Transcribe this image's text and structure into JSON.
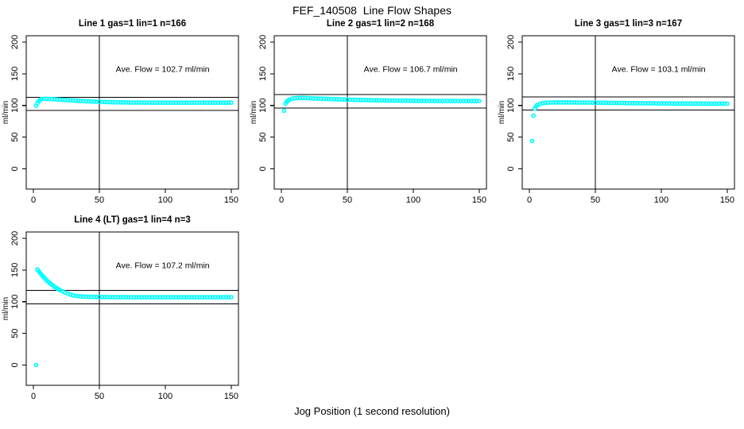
{
  "page": {
    "main_title": "FEF_140508  Line Flow Shapes",
    "x_axis_label": "Jog Position (1 second resolution)",
    "colors": {
      "point": "#00FFFF",
      "line": "#000000",
      "background": "#FFFFFF",
      "text": "#000000"
    }
  },
  "chart_data": [
    {
      "type": "scatter",
      "title": "Line 1 gas=1 lin=1 n=166",
      "ylabel": "ml/min",
      "annotation": "Ave. Flow =  102.7  ml/min",
      "annotation_pos": [
        98,
        153
      ],
      "ave_flow_ml_min": 102.7,
      "xlim": [
        -5.5,
        155.5
      ],
      "ylim": [
        -32,
        210
      ],
      "xticks": [
        0,
        50,
        100,
        150
      ],
      "yticks": [
        0,
        50,
        100,
        150,
        200
      ],
      "hlines": [
        112.97,
        92.43
      ],
      "vlines": [
        50
      ],
      "marker": "open-circle",
      "marker_color": "#00FFFF",
      "points": [
        [
          2,
          99.5
        ],
        [
          3,
          103.8
        ],
        [
          4,
          106.8
        ],
        [
          5,
          108.8
        ],
        [
          6,
          109.9
        ],
        [
          8,
          110.4
        ],
        [
          10,
          110.5
        ],
        [
          12,
          110.3
        ],
        [
          14,
          110.1
        ],
        [
          16,
          109.8
        ],
        [
          18,
          109.5
        ],
        [
          20,
          109.2
        ],
        [
          22,
          108.9
        ],
        [
          24,
          108.6
        ],
        [
          26,
          108.3
        ],
        [
          28,
          108.1
        ],
        [
          30,
          107.8
        ],
        [
          32,
          107.6
        ],
        [
          34,
          107.3
        ],
        [
          36,
          107.1
        ],
        [
          38,
          106.9
        ],
        [
          40,
          106.7
        ],
        [
          42,
          106.5
        ],
        [
          44,
          106.3
        ],
        [
          46,
          106.1
        ],
        [
          48,
          105.9
        ],
        [
          50,
          105.8
        ],
        [
          52,
          105.6
        ],
        [
          54,
          105.5
        ],
        [
          56,
          105.4
        ],
        [
          58,
          105.2
        ],
        [
          60,
          105.1
        ],
        [
          62,
          105.0
        ],
        [
          64,
          104.9
        ],
        [
          66,
          104.9
        ],
        [
          68,
          104.8
        ],
        [
          70,
          104.7
        ],
        [
          72,
          104.7
        ],
        [
          74,
          104.6
        ],
        [
          76,
          104.6
        ],
        [
          78,
          104.5
        ],
        [
          80,
          104.5
        ],
        [
          82,
          104.4
        ],
        [
          84,
          104.4
        ],
        [
          86,
          104.5
        ],
        [
          88,
          104.4
        ],
        [
          90,
          104.3
        ],
        [
          92,
          104.4
        ],
        [
          94,
          104.3
        ],
        [
          96,
          104.4
        ],
        [
          98,
          104.3
        ],
        [
          100,
          104.4
        ],
        [
          102,
          104.3
        ],
        [
          104,
          104.4
        ],
        [
          106,
          104.3
        ],
        [
          108,
          104.4
        ],
        [
          110,
          104.3
        ],
        [
          112,
          104.4
        ],
        [
          114,
          104.3
        ],
        [
          116,
          104.4
        ],
        [
          118,
          104.3
        ],
        [
          120,
          104.4
        ],
        [
          122,
          104.3
        ],
        [
          124,
          104.4
        ],
        [
          126,
          104.3
        ],
        [
          128,
          104.5
        ],
        [
          130,
          104.3
        ],
        [
          132,
          104.4
        ],
        [
          134,
          104.3
        ],
        [
          136,
          104.4
        ],
        [
          138,
          104.3
        ],
        [
          140,
          104.4
        ],
        [
          142,
          104.3
        ],
        [
          144,
          104.4
        ],
        [
          146,
          104.3
        ],
        [
          148,
          104.4
        ],
        [
          150,
          104.4
        ]
      ]
    },
    {
      "type": "scatter",
      "title": "Line 2 gas=1 lin=2 n=168",
      "ylabel": "ml/min",
      "annotation": "Ave. Flow =  106.7  ml/min",
      "annotation_pos": [
        98,
        153
      ],
      "ave_flow_ml_min": 106.7,
      "xlim": [
        -5.5,
        155.5
      ],
      "ylim": [
        -32,
        210
      ],
      "xticks": [
        0,
        50,
        100,
        150
      ],
      "yticks": [
        0,
        50,
        100,
        150,
        200
      ],
      "hlines": [
        117.37,
        96.03
      ],
      "vlines": [
        50
      ],
      "marker": "open-circle",
      "marker_color": "#00FFFF",
      "points": [
        [
          2,
          91.8
        ],
        [
          3,
          102.8
        ],
        [
          4,
          105.8
        ],
        [
          5,
          107.8
        ],
        [
          6,
          109.2
        ],
        [
          8,
          110.6
        ],
        [
          10,
          111.3
        ],
        [
          12,
          111.7
        ],
        [
          14,
          111.9
        ],
        [
          16,
          111.9
        ],
        [
          18,
          111.8
        ],
        [
          20,
          111.6
        ],
        [
          22,
          111.4
        ],
        [
          24,
          111.2
        ],
        [
          26,
          111.0
        ],
        [
          28,
          110.9
        ],
        [
          30,
          110.7
        ],
        [
          32,
          110.5
        ],
        [
          34,
          110.4
        ],
        [
          36,
          110.2
        ],
        [
          38,
          110.1
        ],
        [
          40,
          109.9
        ],
        [
          42,
          109.8
        ],
        [
          44,
          109.6
        ],
        [
          46,
          109.5
        ],
        [
          48,
          109.4
        ],
        [
          50,
          109.2
        ],
        [
          52,
          109.1
        ],
        [
          54,
          109.0
        ],
        [
          56,
          108.9
        ],
        [
          58,
          108.8
        ],
        [
          60,
          108.7
        ],
        [
          62,
          108.6
        ],
        [
          64,
          108.5
        ],
        [
          66,
          108.4
        ],
        [
          68,
          108.3
        ],
        [
          70,
          108.2
        ],
        [
          72,
          108.2
        ],
        [
          74,
          108.1
        ],
        [
          76,
          108.0
        ],
        [
          78,
          107.9
        ],
        [
          80,
          107.9
        ],
        [
          82,
          107.8
        ],
        [
          84,
          107.8
        ],
        [
          86,
          107.7
        ],
        [
          88,
          107.7
        ],
        [
          90,
          107.6
        ],
        [
          92,
          107.6
        ],
        [
          94,
          107.5
        ],
        [
          96,
          107.5
        ],
        [
          98,
          107.4
        ],
        [
          100,
          107.4
        ],
        [
          102,
          107.4
        ],
        [
          104,
          107.3
        ],
        [
          106,
          107.3
        ],
        [
          108,
          107.3
        ],
        [
          110,
          107.2
        ],
        [
          112,
          107.2
        ],
        [
          114,
          107.2
        ],
        [
          116,
          107.2
        ],
        [
          118,
          107.1
        ],
        [
          120,
          107.1
        ],
        [
          122,
          107.1
        ],
        [
          124,
          107.1
        ],
        [
          126,
          107.1
        ],
        [
          128,
          107.0
        ],
        [
          130,
          107.0
        ],
        [
          132,
          107.0
        ],
        [
          134,
          107.0
        ],
        [
          136,
          107.0
        ],
        [
          138,
          107.0
        ],
        [
          140,
          107.0
        ],
        [
          142,
          106.9
        ],
        [
          144,
          107.0
        ],
        [
          146,
          106.9
        ],
        [
          148,
          107.0
        ],
        [
          150,
          107.0
        ]
      ]
    },
    {
      "type": "scatter",
      "title": "Line 3 gas=1 lin=3 n=167",
      "ylabel": "ml/min",
      "annotation": "Ave. Flow =  103.1  ml/min",
      "annotation_pos": [
        98,
        153
      ],
      "ave_flow_ml_min": 103.1,
      "xlim": [
        -5.5,
        155.5
      ],
      "ylim": [
        -32,
        210
      ],
      "xticks": [
        0,
        50,
        100,
        150
      ],
      "yticks": [
        0,
        50,
        100,
        150,
        200
      ],
      "hlines": [
        113.41,
        92.79
      ],
      "vlines": [
        50
      ],
      "marker": "open-circle",
      "marker_color": "#00FFFF",
      "points": [
        [
          2,
          44.0
        ],
        [
          3,
          84.0
        ],
        [
          4,
          95.0
        ],
        [
          5,
          98.5
        ],
        [
          6,
          100.6
        ],
        [
          8,
          102.6
        ],
        [
          10,
          103.6
        ],
        [
          12,
          104.1
        ],
        [
          14,
          104.4
        ],
        [
          16,
          104.6
        ],
        [
          18,
          104.7
        ],
        [
          20,
          104.8
        ],
        [
          22,
          104.8
        ],
        [
          24,
          104.8
        ],
        [
          26,
          104.8
        ],
        [
          28,
          104.8
        ],
        [
          30,
          104.8
        ],
        [
          32,
          104.7
        ],
        [
          34,
          104.7
        ],
        [
          36,
          104.7
        ],
        [
          38,
          104.6
        ],
        [
          40,
          104.6
        ],
        [
          42,
          104.5
        ],
        [
          44,
          104.5
        ],
        [
          46,
          104.5
        ],
        [
          48,
          104.4
        ],
        [
          50,
          104.4
        ],
        [
          52,
          104.3
        ],
        [
          54,
          104.3
        ],
        [
          56,
          104.2
        ],
        [
          58,
          104.2
        ],
        [
          60,
          104.1
        ],
        [
          62,
          104.1
        ],
        [
          64,
          104.0
        ],
        [
          66,
          104.0
        ],
        [
          68,
          103.9
        ],
        [
          70,
          103.9
        ],
        [
          72,
          103.8
        ],
        [
          74,
          103.8
        ],
        [
          76,
          103.7
        ],
        [
          78,
          103.7
        ],
        [
          80,
          103.6
        ],
        [
          82,
          103.6
        ],
        [
          84,
          103.5
        ],
        [
          86,
          103.5
        ],
        [
          88,
          103.4
        ],
        [
          90,
          103.4
        ],
        [
          92,
          103.4
        ],
        [
          94,
          103.3
        ],
        [
          96,
          103.3
        ],
        [
          98,
          103.3
        ],
        [
          100,
          103.2
        ],
        [
          102,
          103.2
        ],
        [
          104,
          103.2
        ],
        [
          106,
          103.1
        ],
        [
          108,
          103.1
        ],
        [
          110,
          103.1
        ],
        [
          112,
          103.1
        ],
        [
          114,
          103.0
        ],
        [
          116,
          103.0
        ],
        [
          118,
          103.0
        ],
        [
          120,
          103.0
        ],
        [
          122,
          103.0
        ],
        [
          124,
          102.9
        ],
        [
          126,
          103.0
        ],
        [
          128,
          102.9
        ],
        [
          130,
          102.9
        ],
        [
          132,
          102.9
        ],
        [
          134,
          102.9
        ],
        [
          136,
          102.9
        ],
        [
          138,
          102.8
        ],
        [
          140,
          102.9
        ],
        [
          142,
          102.8
        ],
        [
          144,
          102.9
        ],
        [
          146,
          102.8
        ],
        [
          148,
          102.8
        ],
        [
          150,
          102.8
        ]
      ]
    },
    {
      "type": "scatter",
      "title": "Line 4 (LT) gas=1 lin=4 n=3",
      "ylabel": "ml/min",
      "annotation": "Ave. Flow =  107.2  ml/min",
      "annotation_pos": [
        98,
        153
      ],
      "ave_flow_ml_min": 107.2,
      "xlim": [
        -5.5,
        155.5
      ],
      "ylim": [
        -32,
        210
      ],
      "xticks": [
        0,
        50,
        100,
        150
      ],
      "yticks": [
        0,
        50,
        100,
        150,
        200
      ],
      "hlines": [
        117.92,
        96.48
      ],
      "vlines": [
        50
      ],
      "marker": "open-circle",
      "marker_color": "#00FFFF",
      "points": [
        [
          2,
          0.0
        ],
        [
          3,
          150.8
        ],
        [
          4,
          148.0
        ],
        [
          5,
          145.3
        ],
        [
          6,
          142.8
        ],
        [
          7,
          140.4
        ],
        [
          8,
          138.1
        ],
        [
          9,
          135.9
        ],
        [
          10,
          133.8
        ],
        [
          11,
          131.9
        ],
        [
          12,
          130.0
        ],
        [
          13,
          128.3
        ],
        [
          14,
          126.6
        ],
        [
          15,
          125.0
        ],
        [
          16,
          123.5
        ],
        [
          17,
          122.1
        ],
        [
          18,
          120.8
        ],
        [
          19,
          119.5
        ],
        [
          20,
          118.4
        ],
        [
          22,
          116.2
        ],
        [
          24,
          114.3
        ],
        [
          26,
          112.7
        ],
        [
          28,
          111.3
        ],
        [
          30,
          110.1
        ],
        [
          32,
          109.1
        ],
        [
          34,
          108.9
        ],
        [
          36,
          108.4
        ],
        [
          38,
          108.0
        ],
        [
          40,
          107.9
        ],
        [
          42,
          107.7
        ],
        [
          44,
          107.6
        ],
        [
          46,
          107.5
        ],
        [
          48,
          107.4
        ],
        [
          50,
          107.4
        ],
        [
          52,
          107.3
        ],
        [
          54,
          107.3
        ],
        [
          56,
          107.3
        ],
        [
          58,
          107.2
        ],
        [
          60,
          107.2
        ],
        [
          62,
          107.2
        ],
        [
          64,
          107.2
        ],
        [
          66,
          107.1
        ],
        [
          68,
          107.2
        ],
        [
          70,
          107.1
        ],
        [
          72,
          107.1
        ],
        [
          74,
          107.1
        ],
        [
          76,
          107.1
        ],
        [
          78,
          107.0
        ],
        [
          80,
          107.1
        ],
        [
          82,
          107.0
        ],
        [
          84,
          107.1
        ],
        [
          86,
          107.0
        ],
        [
          88,
          107.0
        ],
        [
          90,
          107.1
        ],
        [
          92,
          107.0
        ],
        [
          94,
          107.0
        ],
        [
          96,
          107.1
        ],
        [
          98,
          107.0
        ],
        [
          100,
          107.0
        ],
        [
          102,
          107.1
        ],
        [
          104,
          107.0
        ],
        [
          106,
          107.0
        ],
        [
          108,
          107.1
        ],
        [
          110,
          107.0
        ],
        [
          112,
          107.0
        ],
        [
          114,
          107.1
        ],
        [
          116,
          107.0
        ],
        [
          118,
          107.0
        ],
        [
          120,
          107.1
        ],
        [
          122,
          107.0
        ],
        [
          124,
          107.0
        ],
        [
          126,
          107.1
        ],
        [
          128,
          107.0
        ],
        [
          130,
          107.0
        ],
        [
          132,
          107.1
        ],
        [
          134,
          107.0
        ],
        [
          136,
          107.0
        ],
        [
          138,
          107.1
        ],
        [
          140,
          107.0
        ],
        [
          142,
          107.0
        ],
        [
          144,
          107.0
        ],
        [
          146,
          107.0
        ],
        [
          148,
          107.0
        ],
        [
          150,
          107.0
        ]
      ]
    }
  ]
}
